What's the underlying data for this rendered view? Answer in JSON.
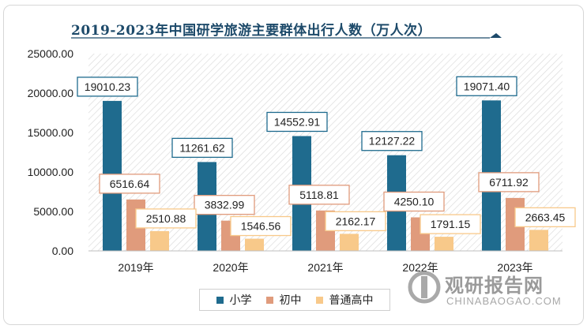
{
  "chart_data": {
    "type": "bar",
    "title": "2019-2023年中国研学旅游主要群体出行人数（万人次）",
    "categories": [
      "2019年",
      "2020年",
      "2021年",
      "2022年",
      "2023年"
    ],
    "series": [
      {
        "name": "小学",
        "color": "#1f6b8e",
        "values": [
          19010.23,
          11261.62,
          14552.91,
          12127.22,
          19071.4
        ],
        "labels": [
          "19010.23",
          "11261.62",
          "14552.91",
          "12127.22",
          "19071.40"
        ]
      },
      {
        "name": "初中",
        "color": "#e09b7c",
        "values": [
          6516.64,
          3832.99,
          5118.81,
          4250.1,
          6711.92
        ],
        "labels": [
          "6516.64",
          "3832.99",
          "5118.81",
          "4250.10",
          "6711.92"
        ]
      },
      {
        "name": "普通高中",
        "color": "#f8c98a",
        "values": [
          2510.88,
          1546.56,
          2162.17,
          1791.15,
          2663.45
        ],
        "labels": [
          "2510.88",
          "1546.56",
          "2162.17",
          "1791.15",
          "2663.45"
        ]
      }
    ],
    "ylim": [
      0,
      25000
    ],
    "yticks": [
      "0.00",
      "5000.00",
      "10000.00",
      "15000.00",
      "20000.00",
      "25000.00"
    ],
    "legend_position": "bottom",
    "grid": false
  },
  "watermark": {
    "name_cn": "观研报告网",
    "name_en": "CHINABAOGAO.COM"
  }
}
